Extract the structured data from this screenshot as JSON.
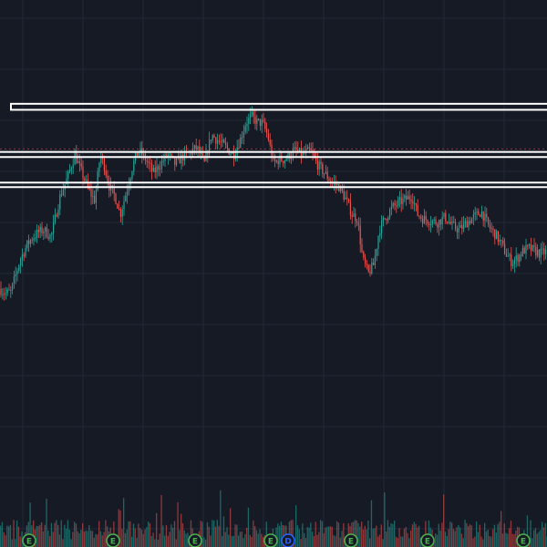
{
  "colors": {
    "background": "#161a25",
    "grid": "#232838",
    "bull": "#26a69a",
    "bear": "#ef5350",
    "zone_stroke": "#ffffff",
    "reference_line": "#ef5350",
    "earnings_marker": "#4caf50",
    "dividend_marker": "#2962ff"
  },
  "chart_data": {
    "type": "candlestick",
    "title": "",
    "xlabel": "",
    "ylabel": "",
    "grid": true,
    "legend": "none",
    "y_domain": [
      0,
      100
    ],
    "price_path": [
      [
        0,
        13
      ],
      [
        6,
        8
      ],
      [
        12,
        10
      ],
      [
        22,
        45
      ],
      [
        30,
        62
      ],
      [
        36,
        70
      ],
      [
        42,
        75
      ],
      [
        48,
        78
      ],
      [
        56,
        70
      ],
      [
        66,
        115
      ],
      [
        74,
        135
      ],
      [
        82,
        160
      ],
      [
        90,
        140
      ],
      [
        98,
        120
      ],
      [
        104,
        110
      ],
      [
        110,
        160
      ],
      [
        114,
        150
      ],
      [
        120,
        125
      ],
      [
        126,
        115
      ],
      [
        132,
        95
      ],
      [
        136,
        110
      ],
      [
        140,
        125
      ],
      [
        146,
        150
      ],
      [
        152,
        165
      ],
      [
        160,
        155
      ],
      [
        168,
        140
      ],
      [
        176,
        150
      ],
      [
        184,
        160
      ],
      [
        192,
        150
      ],
      [
        200,
        158
      ],
      [
        208,
        162
      ],
      [
        216,
        168
      ],
      [
        224,
        150
      ],
      [
        232,
        182
      ],
      [
        240,
        175
      ],
      [
        248,
        168
      ],
      [
        256,
        160
      ],
      [
        264,
        178
      ],
      [
        270,
        196
      ],
      [
        276,
        202
      ],
      [
        282,
        196
      ],
      [
        288,
        195
      ],
      [
        294,
        180
      ],
      [
        300,
        150
      ],
      [
        306,
        155
      ],
      [
        312,
        155
      ],
      [
        318,
        160
      ],
      [
        324,
        165
      ],
      [
        332,
        160
      ],
      [
        340,
        165
      ],
      [
        348,
        150
      ],
      [
        356,
        140
      ],
      [
        364,
        130
      ],
      [
        372,
        125
      ],
      [
        380,
        110
      ],
      [
        386,
        95
      ],
      [
        392,
        90
      ],
      [
        398,
        45
      ],
      [
        404,
        30
      ],
      [
        410,
        40
      ],
      [
        416,
        78
      ],
      [
        422,
        90
      ],
      [
        430,
        102
      ],
      [
        438,
        108
      ],
      [
        446,
        112
      ],
      [
        452,
        115
      ],
      [
        458,
        95
      ],
      [
        464,
        90
      ],
      [
        472,
        88
      ],
      [
        480,
        86
      ],
      [
        488,
        92
      ],
      [
        496,
        82
      ],
      [
        504,
        78
      ],
      [
        512,
        86
      ],
      [
        520,
        92
      ],
      [
        528,
        98
      ],
      [
        536,
        82
      ],
      [
        544,
        72
      ],
      [
        550,
        62
      ],
      [
        556,
        50
      ],
      [
        562,
        42
      ],
      [
        568,
        48
      ],
      [
        574,
        55
      ],
      [
        580,
        58
      ],
      [
        586,
        55
      ],
      [
        592,
        52
      ],
      [
        600,
        54
      ]
    ],
    "zones": [
      [
        63.5,
        65.5
      ],
      [
        47.8,
        49.5
      ],
      [
        37.8,
        39.3
      ]
    ],
    "reference_line": 50.5,
    "event_markers": [
      {
        "type": "earnings",
        "x": 32,
        "label": "E"
      },
      {
        "type": "earnings",
        "x": 124,
        "label": "E"
      },
      {
        "type": "earnings",
        "x": 214,
        "label": "E"
      },
      {
        "type": "earnings",
        "x": 297,
        "label": "E"
      },
      {
        "type": "dividend",
        "x": 316,
        "label": "D"
      },
      {
        "type": "earnings",
        "x": 385,
        "label": "E"
      },
      {
        "type": "earnings",
        "x": 469,
        "label": "E"
      },
      {
        "type": "earnings",
        "x": 574,
        "label": "E"
      }
    ]
  }
}
